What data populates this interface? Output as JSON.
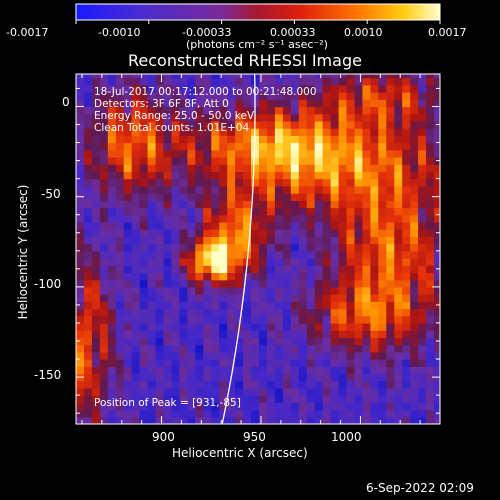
{
  "colorbar": {
    "ticks": [
      "-0.0017",
      "-0.0010",
      "-0.00033",
      "0.00033",
      "0.0010",
      "0.0017"
    ],
    "units_text": "(photons cm⁻² s⁻¹ asec⁻²)",
    "range": [
      -0.0017,
      0.0017
    ]
  },
  "chart_data": {
    "type": "heatmap",
    "title": "Reconstructed RHESSI Image",
    "xlabel": "Heliocentric X (arcsec)",
    "ylabel": "Heliocentric Y (arcsec)",
    "xlim": [
      857,
      1040
    ],
    "ylim": [
      -176,
      18
    ],
    "x_ticks": [
      900,
      950,
      1000
    ],
    "y_ticks": [
      0,
      -50,
      -100,
      -150
    ],
    "grid": false,
    "colormap": "red-temperature",
    "annotations": [
      "18-Jul-2017 00:17:12.000 to 00:21:48.000",
      "Detectors: 3F 6F 8F, Att 0",
      "Energy Range: 25.0 - 50.0 keV",
      "Clean    Total counts: 1.01E+04"
    ],
    "peak_text": "Position of Peak = [931,-85]",
    "peak": [
      931,
      -85
    ],
    "limb": true
  },
  "footer": {
    "date": "6-Sep-2022 02:09"
  }
}
